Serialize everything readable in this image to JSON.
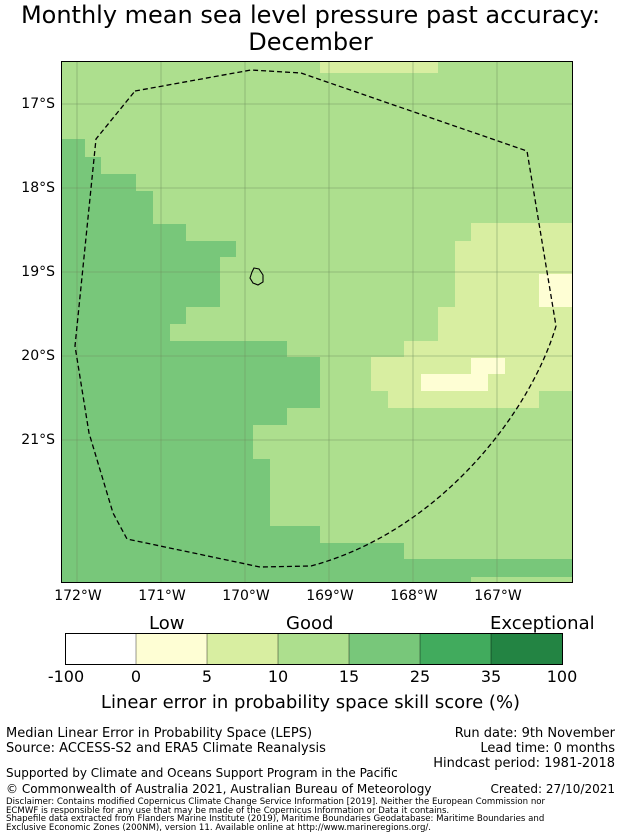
{
  "title": {
    "line1": "Monthly mean sea level pressure past accuracy:",
    "line2": "December"
  },
  "map": {
    "lat_labels": [
      "17°S",
      "18°S",
      "19°S",
      "20°S",
      "21°S"
    ],
    "lon_labels": [
      "172°W",
      "171°W",
      "170°W",
      "169°W",
      "168°W",
      "167°W"
    ],
    "colors": {
      "c1": "#fefed4",
      "c2": "#d8eea1",
      "c3": "#addf8e",
      "c4": "#78c77a",
      "c5": "#41ab5d",
      "c6": "#238443",
      "c0": "#ffffff"
    }
  },
  "legend": {
    "categories": [
      "Low",
      "Good",
      "Exceptional"
    ],
    "ticks": [
      "-100",
      "0",
      "5",
      "10",
      "15",
      "25",
      "35",
      "100"
    ],
    "colors": [
      "#ffffff",
      "#fefed4",
      "#d8eea1",
      "#addf8e",
      "#78c77a",
      "#41ab5d",
      "#238443"
    ],
    "title": "Linear error in probability space skill score (%)"
  },
  "footer": {
    "method": "Median Linear Error in Probability Space (LEPS)",
    "source": "Source: ACCESS-S2 and ERA5 Climate Reanalysis",
    "run_date": "Run date: 9th November",
    "lead_time": "Lead time: 0 months",
    "hindcast": "Hindcast period: 1981-2018",
    "supported": "Supported by Climate and Oceans Support Program in the Pacific",
    "copyright": "© Commonwealth of Australia 2021, Australian Bureau of Meteorology",
    "created": "Created: 27/10/2021",
    "disclaimer1": "Disclaimer: Contains modified Copernicus Climate Change Service Information [2019]. Neither the European Commission nor",
    "disclaimer2": "ECMWF is responsible for any use that may be made of the Copernicus Information or Data it contains.",
    "shapefile1": "Shapefile data extracted from Flanders Marine Institute (2019), Maritime Boundaries Geodatabase: Maritime Boundaries and",
    "shapefile2": "Exclusive Economic Zones (200NM), version 11. Available online at http://www.marineregions.org/."
  }
}
